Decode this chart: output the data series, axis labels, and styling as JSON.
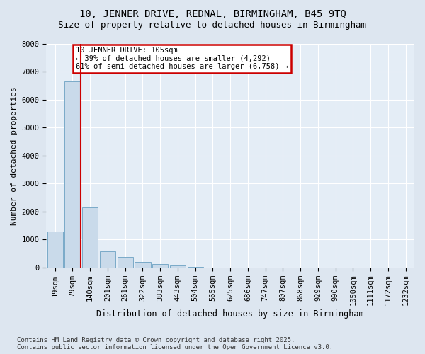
{
  "title1": "10, JENNER DRIVE, REDNAL, BIRMINGHAM, B45 9TQ",
  "title2": "Size of property relative to detached houses in Birmingham",
  "xlabel": "Distribution of detached houses by size in Birmingham",
  "ylabel": "Number of detached properties",
  "categories": [
    "19sqm",
    "79sqm",
    "140sqm",
    "201sqm",
    "261sqm",
    "322sqm",
    "383sqm",
    "443sqm",
    "504sqm",
    "565sqm",
    "625sqm",
    "686sqm",
    "747sqm",
    "807sqm",
    "868sqm",
    "929sqm",
    "990sqm",
    "1050sqm",
    "1111sqm",
    "1172sqm",
    "1232sqm"
  ],
  "values": [
    1300,
    6650,
    2150,
    590,
    375,
    190,
    130,
    65,
    20,
    8,
    3,
    1,
    0,
    0,
    0,
    0,
    0,
    0,
    0,
    0,
    0
  ],
  "bar_color": "#c9daea",
  "bar_edge_color": "#7aaac8",
  "vline_color": "#cc0000",
  "annotation_title": "10 JENNER DRIVE: 105sqm",
  "annotation_line1": "← 39% of detached houses are smaller (4,292)",
  "annotation_line2": "61% of semi-detached houses are larger (6,758) →",
  "annotation_box_color": "#cc0000",
  "footnote1": "Contains HM Land Registry data © Crown copyright and database right 2025.",
  "footnote2": "Contains public sector information licensed under the Open Government Licence v3.0.",
  "bg_color": "#dde6f0",
  "plot_bg_color": "#e4edf6",
  "grid_color": "#c8d4e0",
  "ylim": [
    0,
    8000
  ],
  "yticks": [
    0,
    1000,
    2000,
    3000,
    4000,
    5000,
    6000,
    7000,
    8000
  ],
  "title1_fontsize": 10,
  "title2_fontsize": 9,
  "xlabel_fontsize": 8.5,
  "ylabel_fontsize": 8,
  "tick_fontsize": 7.5,
  "annot_fontsize": 7.5,
  "footnote_fontsize": 6.5
}
